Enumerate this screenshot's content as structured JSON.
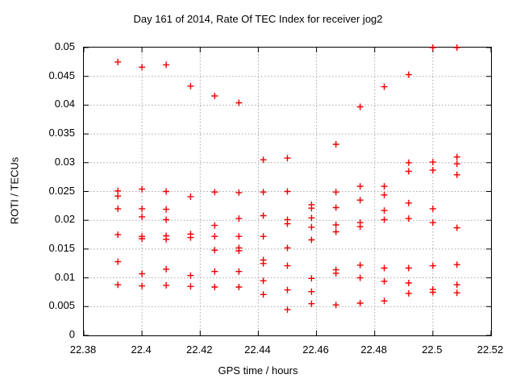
{
  "chart_data": {
    "type": "scatter",
    "title": "Day 161 of 2014, Rate Of TEC Index for receiver jog2",
    "xlabel": "GPS time / hours",
    "ylabel": "ROTI / TECUs",
    "xlim": [
      22.38,
      22.52
    ],
    "ylim": [
      0,
      0.05
    ],
    "xticks": [
      22.38,
      22.4,
      22.42,
      22.44,
      22.46,
      22.48,
      22.5,
      22.52
    ],
    "xtick_labels": [
      "22.38",
      "22.4",
      "22.42",
      "22.44",
      "22.46",
      "22.48",
      "22.5",
      "22.52"
    ],
    "yticks": [
      0,
      0.005,
      0.01,
      0.015,
      0.02,
      0.025,
      0.03,
      0.035,
      0.04,
      0.045,
      0.05
    ],
    "ytick_labels": [
      "0",
      "0.005",
      "0.01",
      "0.015",
      "0.02",
      "0.025",
      "0.03",
      "0.035",
      "0.04",
      "0.045",
      "0.05"
    ],
    "grid": true,
    "legend": "none",
    "marker": "plus",
    "marker_color": "#ee0000",
    "grid_color": "#a6a6a6",
    "points": [
      [
        22.3917,
        0.0475
      ],
      [
        22.3917,
        0.0251
      ],
      [
        22.3917,
        0.0242
      ],
      [
        22.3917,
        0.022
      ],
      [
        22.3917,
        0.0175
      ],
      [
        22.3917,
        0.0128
      ],
      [
        22.3917,
        0.0088
      ],
      [
        22.4,
        0.0466
      ],
      [
        22.4,
        0.0254
      ],
      [
        22.4,
        0.022
      ],
      [
        22.4,
        0.0206
      ],
      [
        22.4,
        0.0172
      ],
      [
        22.4,
        0.0168
      ],
      [
        22.4,
        0.0107
      ],
      [
        22.4,
        0.0086
      ],
      [
        22.4083,
        0.047
      ],
      [
        22.4083,
        0.025
      ],
      [
        22.4083,
        0.0219
      ],
      [
        22.4083,
        0.0201
      ],
      [
        22.4083,
        0.0173
      ],
      [
        22.4083,
        0.0167
      ],
      [
        22.4083,
        0.0115
      ],
      [
        22.4083,
        0.0087
      ],
      [
        22.4167,
        0.0433
      ],
      [
        22.4167,
        0.0241
      ],
      [
        22.4167,
        0.0176
      ],
      [
        22.4167,
        0.017
      ],
      [
        22.4167,
        0.0104
      ],
      [
        22.4167,
        0.0085
      ],
      [
        22.425,
        0.0416
      ],
      [
        22.425,
        0.0249
      ],
      [
        22.425,
        0.0191
      ],
      [
        22.425,
        0.0172
      ],
      [
        22.425,
        0.0148
      ],
      [
        22.425,
        0.0111
      ],
      [
        22.425,
        0.0084
      ],
      [
        22.4333,
        0.0404
      ],
      [
        22.4333,
        0.0248
      ],
      [
        22.4333,
        0.0203
      ],
      [
        22.4333,
        0.0172
      ],
      [
        22.4333,
        0.0152
      ],
      [
        22.4333,
        0.0147
      ],
      [
        22.4333,
        0.0111
      ],
      [
        22.4333,
        0.0084
      ],
      [
        22.4417,
        0.0305
      ],
      [
        22.4417,
        0.0249
      ],
      [
        22.4417,
        0.0208
      ],
      [
        22.4417,
        0.0172
      ],
      [
        22.4417,
        0.0131
      ],
      [
        22.4417,
        0.0125
      ],
      [
        22.4417,
        0.0095
      ],
      [
        22.4417,
        0.0071
      ],
      [
        22.45,
        0.0308
      ],
      [
        22.45,
        0.025
      ],
      [
        22.45,
        0.0201
      ],
      [
        22.45,
        0.0194
      ],
      [
        22.45,
        0.0152
      ],
      [
        22.45,
        0.0121
      ],
      [
        22.45,
        0.0079
      ],
      [
        22.45,
        0.0045
      ],
      [
        22.4583,
        0.0227
      ],
      [
        22.4583,
        0.0221
      ],
      [
        22.4583,
        0.0204
      ],
      [
        22.4583,
        0.0188
      ],
      [
        22.4583,
        0.0166
      ],
      [
        22.4583,
        0.0099
      ],
      [
        22.4583,
        0.0076
      ],
      [
        22.4583,
        0.0055
      ],
      [
        22.4667,
        0.0332
      ],
      [
        22.4667,
        0.0249
      ],
      [
        22.4667,
        0.0222
      ],
      [
        22.4667,
        0.0192
      ],
      [
        22.4667,
        0.018
      ],
      [
        22.4667,
        0.0114
      ],
      [
        22.4667,
        0.0108
      ],
      [
        22.4667,
        0.0053
      ],
      [
        22.475,
        0.0397
      ],
      [
        22.475,
        0.0259
      ],
      [
        22.475,
        0.0235
      ],
      [
        22.475,
        0.0196
      ],
      [
        22.475,
        0.0189
      ],
      [
        22.475,
        0.0122
      ],
      [
        22.475,
        0.01
      ],
      [
        22.475,
        0.0056
      ],
      [
        22.4833,
        0.0432
      ],
      [
        22.4833,
        0.0259
      ],
      [
        22.4833,
        0.0244
      ],
      [
        22.4833,
        0.0217
      ],
      [
        22.4833,
        0.0201
      ],
      [
        22.4833,
        0.0117
      ],
      [
        22.4833,
        0.0094
      ],
      [
        22.4833,
        0.006
      ],
      [
        22.4917,
        0.0453
      ],
      [
        22.4917,
        0.03
      ],
      [
        22.4917,
        0.0285
      ],
      [
        22.4917,
        0.023
      ],
      [
        22.4917,
        0.0203
      ],
      [
        22.4917,
        0.0117
      ],
      [
        22.4917,
        0.0091
      ],
      [
        22.4917,
        0.0073
      ],
      [
        22.5,
        0.05
      ],
      [
        22.5,
        0.0301
      ],
      [
        22.5,
        0.0287
      ],
      [
        22.5,
        0.022
      ],
      [
        22.5,
        0.0196
      ],
      [
        22.5,
        0.0121
      ],
      [
        22.5,
        0.008
      ],
      [
        22.5,
        0.0075
      ],
      [
        22.5083,
        0.05
      ],
      [
        22.5083,
        0.031
      ],
      [
        22.5083,
        0.0298
      ],
      [
        22.5083,
        0.0279
      ],
      [
        22.5083,
        0.0187
      ],
      [
        22.5083,
        0.0123
      ],
      [
        22.5083,
        0.0088
      ],
      [
        22.5083,
        0.0074
      ]
    ]
  }
}
